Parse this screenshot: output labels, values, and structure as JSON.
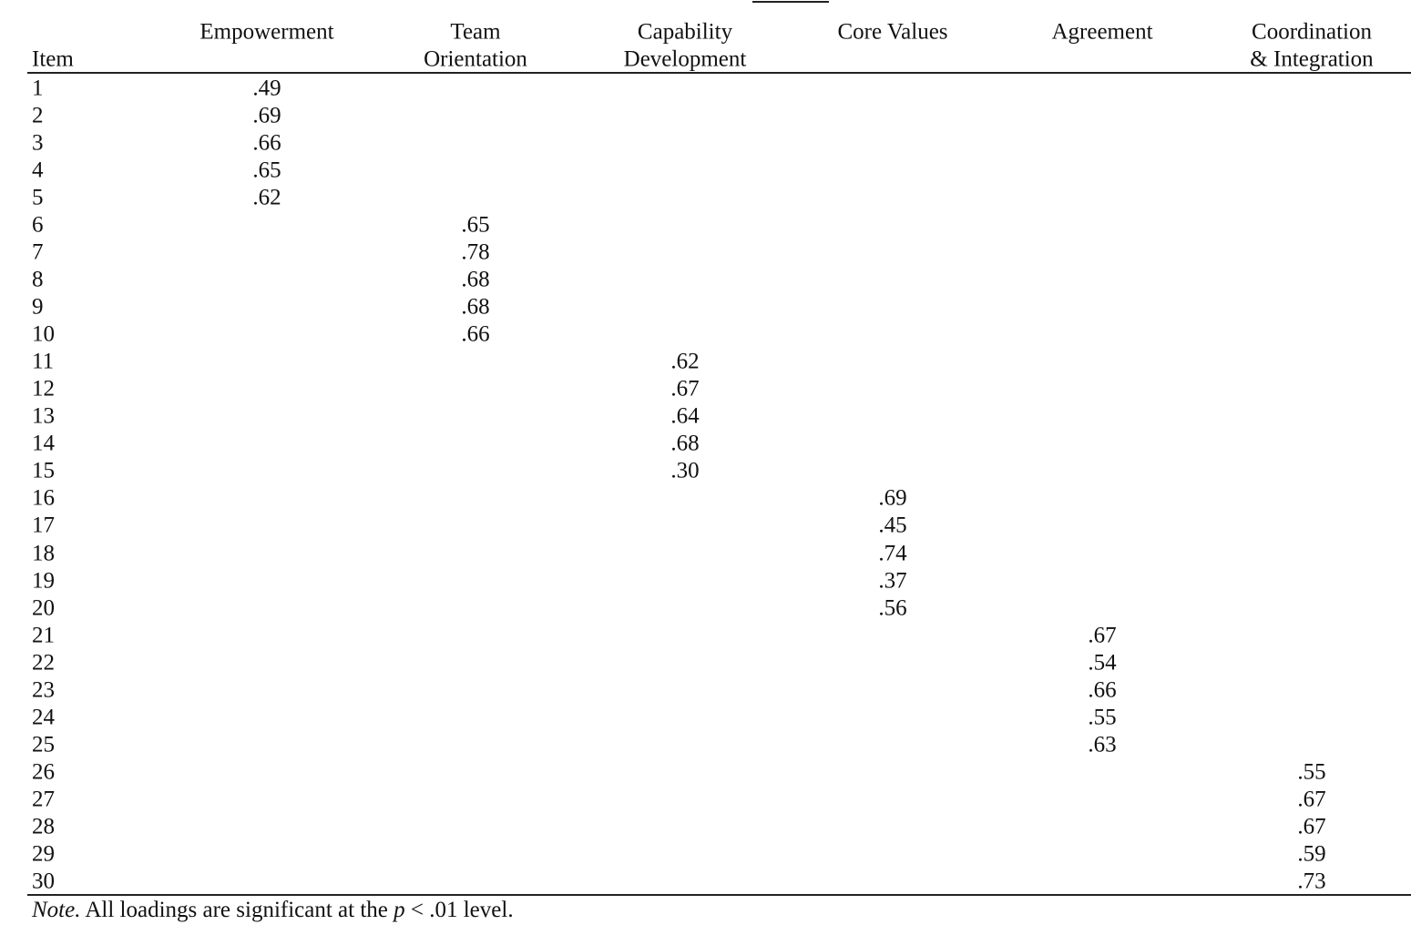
{
  "table": {
    "header": {
      "item": "Item",
      "factors": [
        [
          "Empowerment"
        ],
        [
          "Team",
          "Orientation"
        ],
        [
          "Capability",
          "Development"
        ],
        [
          "Core Values"
        ],
        [
          "Agreement"
        ],
        [
          "Coordination",
          "& Integration"
        ]
      ]
    },
    "groups": [
      {
        "items": [
          1,
          2,
          3,
          4,
          5
        ],
        "loadings": [
          ".49",
          ".69",
          ".66",
          ".65",
          ".62"
        ]
      },
      {
        "items": [
          6,
          7,
          8,
          9,
          10
        ],
        "loadings": [
          ".65",
          ".78",
          ".68",
          ".68",
          ".66"
        ]
      },
      {
        "items": [
          11,
          12,
          13,
          14,
          15
        ],
        "loadings": [
          ".62",
          ".67",
          ".64",
          ".68",
          ".30"
        ]
      },
      {
        "items": [
          16,
          17,
          18,
          19,
          20
        ],
        "loadings": [
          ".69",
          ".45",
          ".74",
          ".37",
          ".56"
        ]
      },
      {
        "items": [
          21,
          22,
          23,
          24,
          25
        ],
        "loadings": [
          ".67",
          ".54",
          ".66",
          ".55",
          ".63"
        ]
      },
      {
        "items": [
          26,
          27,
          28,
          29,
          30
        ],
        "loadings": [
          ".55",
          ".67",
          ".67",
          ".59",
          ".73"
        ]
      }
    ],
    "note": {
      "label": "Note.",
      "text_1": "All loadings are significant at the",
      "p": "p",
      "text_2": "< .01 level."
    }
  }
}
